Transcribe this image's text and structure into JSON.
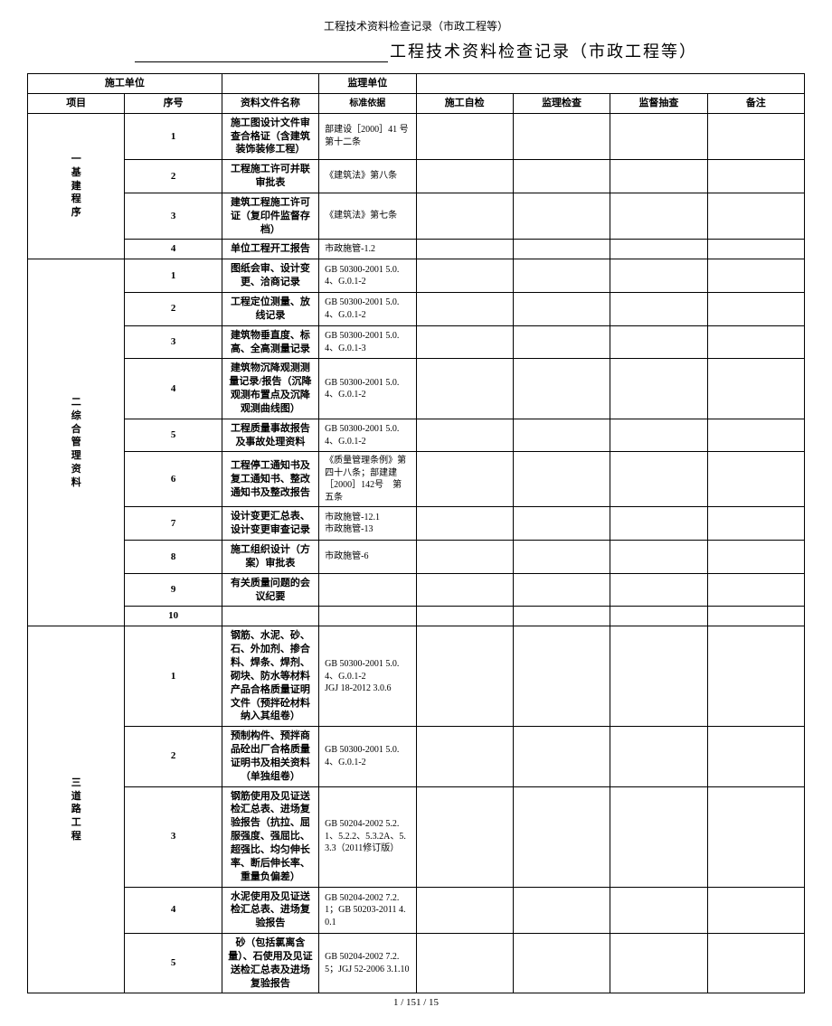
{
  "topline": "工程技术资料检查记录（市政工程等）",
  "title_suffix": "工程技术资料检查记录（市政工程等）",
  "info": {
    "constructor_label": "施工单位",
    "supervisor_label": "监理单位"
  },
  "head": {
    "project": "项目",
    "seq": "序号",
    "docname": "资料文件名称",
    "standard": "标准依据",
    "selfcheck": "施工自检",
    "supcheck": "监理检查",
    "govcheck": "监督抽查",
    "note": "备注"
  },
  "sections": [
    {
      "label": "一基建程序",
      "rows": [
        {
          "seq": "1",
          "name": "施工图设计文件审查合格证（含建筑装饰装修工程）",
          "std": "部建设［2000］41 号第十二条"
        },
        {
          "seq": "2",
          "name": "工程施工许可并联审批表",
          "std": "《建筑法》第八条"
        },
        {
          "seq": "3",
          "name": "建筑工程施工许可证（复印件监督存档）",
          "std": "《建筑法》第七条"
        },
        {
          "seq": "4",
          "name": "单位工程开工报告",
          "std": "市政施管-1.2"
        }
      ]
    },
    {
      "label": "二综合管理资料",
      "rows": [
        {
          "seq": "1",
          "name": "图纸会审、设计变更、洽商记录",
          "std": "GB 50300-2001 5.0.4、G.0.1-2"
        },
        {
          "seq": "2",
          "name": "工程定位测量、放线记录",
          "std": "GB 50300-2001 5.0.4、G.0.1-2"
        },
        {
          "seq": "3",
          "name": "建筑物垂直度、标高、全高测量记录",
          "std": "GB 50300-2001 5.0.4、G.0.1-3"
        },
        {
          "seq": "4",
          "name": "建筑物沉降观测测量记录/报告（沉降观测布置点及沉降观测曲线图）",
          "std": "GB 50300-2001 5.0.4、G.0.1-2"
        },
        {
          "seq": "5",
          "name": "工程质量事故报告及事故处理资料",
          "std": "GB 50300-2001 5.0.4、G.0.1-2"
        },
        {
          "seq": "6",
          "name": "工程停工通知书及复工通知书、整改通知书及整改报告",
          "std": "《质量管理条例》第四十八条；部建建［2000］142号　第五条"
        },
        {
          "seq": "7",
          "name": "设计变更汇总表、设计变更审查记录",
          "std": "市政施管-12.1\n市政施管-13"
        },
        {
          "seq": "8",
          "name": "施工组织设计（方案）审批表",
          "std": "市政施管-6"
        },
        {
          "seq": "9",
          "name": "有关质量问题的会议纪要",
          "std": ""
        },
        {
          "seq": "10",
          "name": "",
          "std": ""
        }
      ]
    },
    {
      "label": "三道路工程",
      "rows": [
        {
          "seq": "1",
          "name": "钢筋、水泥、砂、石、外加剂、掺合料、焊条、焊剂、砌块、防水等材料产品合格质量证明文件（预拌砼材料纳入其组卷）",
          "std": "GB 50300-2001 5.0.4、G.0.1-2\nJGJ 18-2012 3.0.6"
        },
        {
          "seq": "2",
          "name": "预制构件、预拌商品砼出厂合格质量证明书及相关资料（单独组卷）",
          "std": "GB 50300-2001 5.0.4、G.0.1-2"
        },
        {
          "seq": "3",
          "name": "钢筋使用及见证送检汇总表、进场复验报告（抗拉、屈服强度、强屈比、超强比、均匀伸长率、断后伸长率、重量负偏差）",
          "std": "GB 50204-2002 5.2.1、5.2.2、5.3.2A、5.3.3（2011修订版）"
        },
        {
          "seq": "4",
          "name": "水泥使用及见证送检汇总表、进场复验报告",
          "std": "GB 50204-2002 7.2.1；GB 50203-2011 4.0.1"
        },
        {
          "seq": "5",
          "name": "砂（包括氯离含量）、石使用及见证送检汇总表及进场复验报告",
          "std": "GB 50204-2002 7.2.5；JGJ 52-2006 3.1.10"
        }
      ]
    }
  ],
  "pager": "1 / 151 / 15"
}
